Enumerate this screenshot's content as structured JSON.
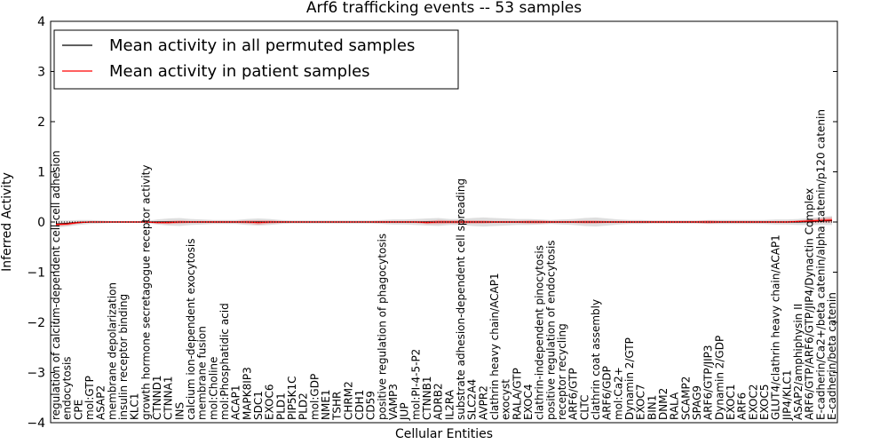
{
  "chart_data": {
    "type": "line",
    "title": "Arf6 trafficking events -- 53 samples",
    "xlabel": "Cellular Entities",
    "ylabel": "Inferred Activity",
    "ylim": [
      -4,
      4
    ],
    "yticks": [
      -4,
      -3,
      -2,
      -1,
      0,
      1,
      2,
      3,
      4
    ],
    "grid": false,
    "legend_position": "top-left",
    "categories": [
      "regulation of calcium-dependent cell-cell adhesion",
      "endocytosis",
      "CPE",
      "mol:GTP",
      "ASAP2",
      "membrane depolarization",
      "insulin receptor binding",
      "KLC1",
      "growth hormone secretagogue receptor activity",
      "CTNND1",
      "CTNNA1",
      "INS",
      "calcium ion-dependent exocytosis",
      "membrane fusion",
      "mol:Choline",
      "mol:Phosphatidic acid",
      "ACAP1",
      "MAPK8IP3",
      "SDC1",
      "EXOC6",
      "PLD1",
      "PIP5K1C",
      "PLD2",
      "mol:GDP",
      "NME1",
      "TSHR",
      "CHRM2",
      "CDH1",
      "CD59",
      "positive regulation of phagocytosis",
      "VAMP3",
      "JUP",
      "mol:PI-4-5-P2",
      "CTNNB1",
      "ADRB2",
      "IL2RA",
      "substrate adhesion-dependent cell spreading",
      "SLC2A4",
      "AVPR2",
      "clathrin heavy chain/ACAP1",
      "exocyst",
      "RALA/GTP",
      "EXOC4",
      "clathrin-independent pinocytosis",
      "positive regulation of endocytosis",
      "receptor recycling",
      "ARF6/GTP",
      "CLTC",
      "clathrin coat assembly",
      "ARF6/GDP",
      "mol:Ca2+",
      "Dynamin 2/GTP",
      "EXOC7",
      "BIN1",
      "DNM2",
      "RALA",
      "SCAMP2",
      "SPAG9",
      "ARF6/GTP/JIP3",
      "Dynamin 2/GDP",
      "EXOC1",
      "ARF6",
      "EXOC2",
      "EXOC5",
      "GLUT4/clathrin heavy chain/ACAP1",
      "JIP4/KLC1",
      "ASAP2/amphiphysin II",
      "ARF6/GTP/ARF6/GTP/JIP4/Dynactin Complex",
      "E-cadherin/Ca2+/beta catenin/alpha catenin/p120 catenin",
      "E-cadherin/beta catenin"
    ],
    "series": [
      {
        "name": "Mean activity in all permuted samples",
        "color": "#000000",
        "values": [
          -0.04,
          -0.03,
          -0.01,
          0.0,
          0.0,
          0.0,
          0.0,
          0.0,
          0.0,
          0.0,
          0.0,
          0.0,
          0.0,
          0.0,
          0.0,
          0.0,
          0.0,
          0.0,
          0.0,
          0.0,
          0.0,
          0.0,
          0.0,
          0.0,
          0.0,
          0.0,
          0.0,
          0.0,
          0.0,
          0.0,
          0.0,
          0.0,
          0.0,
          0.0,
          0.0,
          0.0,
          0.0,
          0.0,
          0.0,
          0.0,
          0.0,
          0.0,
          0.0,
          0.0,
          0.0,
          0.0,
          0.0,
          0.0,
          0.0,
          0.0,
          0.0,
          0.0,
          0.0,
          0.0,
          0.0,
          0.0,
          0.0,
          0.0,
          0.0,
          0.0,
          0.0,
          0.0,
          0.0,
          0.0,
          0.0,
          0.0,
          0.0,
          0.01,
          0.02,
          0.03
        ],
        "band": [
          0.07,
          0.06,
          0.05,
          0.04,
          0.03,
          0.02,
          0.02,
          0.02,
          0.02,
          0.05,
          0.07,
          0.08,
          0.06,
          0.05,
          0.04,
          0.04,
          0.04,
          0.06,
          0.07,
          0.06,
          0.04,
          0.03,
          0.03,
          0.03,
          0.03,
          0.03,
          0.03,
          0.03,
          0.03,
          0.04,
          0.05,
          0.05,
          0.06,
          0.07,
          0.08,
          0.06,
          0.06,
          0.08,
          0.09,
          0.08,
          0.07,
          0.06,
          0.06,
          0.05,
          0.04,
          0.05,
          0.06,
          0.08,
          0.09,
          0.07,
          0.05,
          0.04,
          0.04,
          0.03,
          0.03,
          0.03,
          0.03,
          0.03,
          0.04,
          0.04,
          0.04,
          0.04,
          0.04,
          0.04,
          0.05,
          0.05,
          0.06,
          0.07,
          0.08,
          0.09
        ]
      },
      {
        "name": "Mean activity in patient samples",
        "color": "#ff0000",
        "values": [
          -0.05,
          -0.04,
          -0.01,
          0.0,
          0.0,
          0.0,
          0.0,
          0.0,
          0.0,
          -0.01,
          -0.01,
          0.0,
          0.0,
          0.0,
          0.0,
          0.0,
          0.0,
          0.0,
          -0.01,
          0.0,
          0.0,
          0.0,
          0.0,
          0.0,
          0.0,
          0.0,
          0.0,
          0.0,
          0.0,
          0.0,
          0.0,
          0.0,
          0.0,
          -0.01,
          0.0,
          0.0,
          0.0,
          0.0,
          0.0,
          0.0,
          0.0,
          0.0,
          0.0,
          0.0,
          0.0,
          0.0,
          0.0,
          0.0,
          0.0,
          0.0,
          0.0,
          0.0,
          0.0,
          0.0,
          0.0,
          0.0,
          0.0,
          0.0,
          0.0,
          0.0,
          0.0,
          0.0,
          0.0,
          0.0,
          0.0,
          0.0,
          0.01,
          0.02,
          0.03,
          0.04
        ],
        "band": [
          0.03,
          0.03,
          0.02,
          0.01,
          0.01,
          0.01,
          0.01,
          0.01,
          0.01,
          0.02,
          0.03,
          0.03,
          0.02,
          0.02,
          0.02,
          0.02,
          0.02,
          0.03,
          0.04,
          0.03,
          0.02,
          0.01,
          0.01,
          0.01,
          0.01,
          0.01,
          0.01,
          0.01,
          0.01,
          0.02,
          0.02,
          0.02,
          0.02,
          0.03,
          0.04,
          0.03,
          0.03,
          0.03,
          0.03,
          0.02,
          0.02,
          0.02,
          0.03,
          0.03,
          0.02,
          0.02,
          0.02,
          0.03,
          0.03,
          0.02,
          0.02,
          0.02,
          0.02,
          0.02,
          0.02,
          0.02,
          0.02,
          0.02,
          0.03,
          0.02,
          0.02,
          0.02,
          0.02,
          0.02,
          0.02,
          0.02,
          0.02,
          0.03,
          0.04,
          0.05
        ]
      }
    ]
  }
}
